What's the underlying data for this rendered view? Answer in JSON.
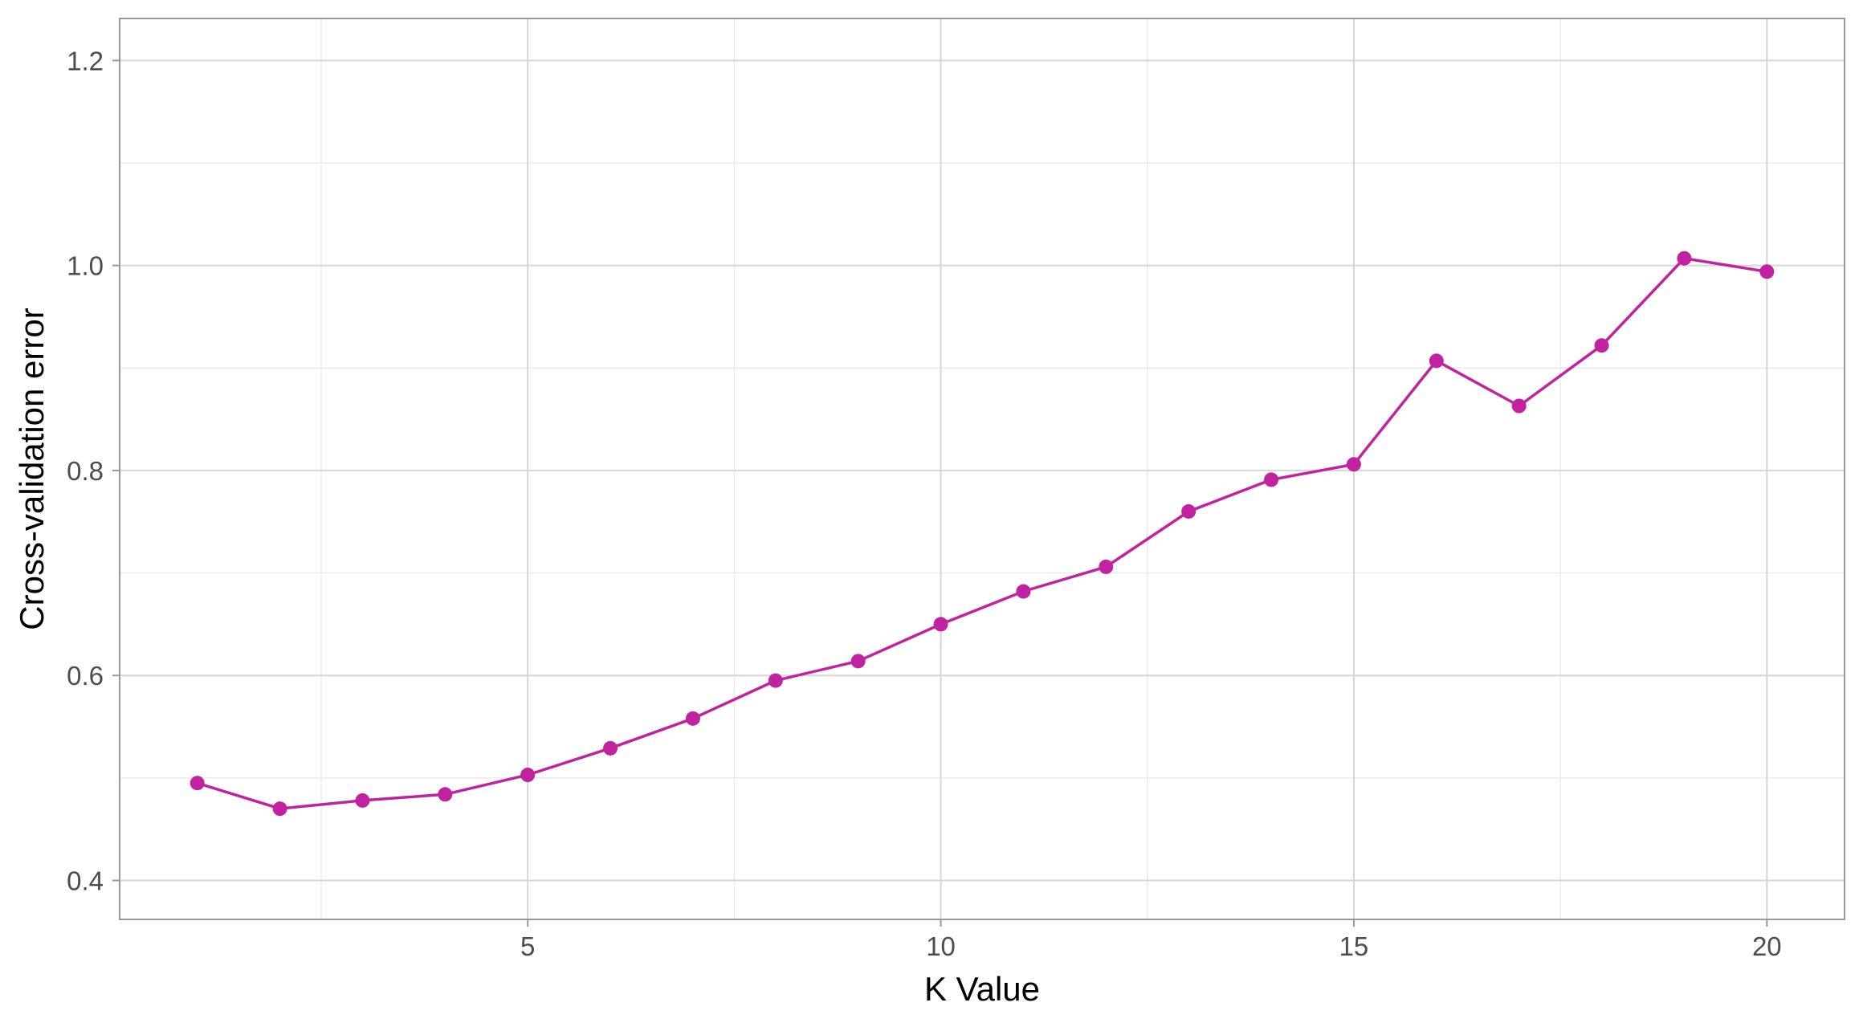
{
  "chart_data": {
    "type": "line",
    "title": "",
    "xlabel": "K Value",
    "ylabel": "Cross-validation error",
    "x": [
      1,
      2,
      3,
      4,
      5,
      6,
      7,
      8,
      9,
      10,
      11,
      12,
      13,
      14,
      15,
      16,
      17,
      18,
      19,
      20
    ],
    "series": [
      {
        "values": [
          0.495,
          0.47,
          0.478,
          0.484,
          0.503,
          0.529,
          0.558,
          0.595,
          0.614,
          0.65,
          0.682,
          0.706,
          0.76,
          0.791,
          0.806,
          0.907,
          0.863,
          0.922,
          1.007,
          0.994
        ],
        "color": "#c1229f"
      }
    ],
    "xlim": [
      0.06,
      20.94
    ],
    "ylim": [
      0.362,
      1.241
    ],
    "xticks": [
      5,
      10,
      15,
      20
    ],
    "xtick_labels": [
      "5",
      "10",
      "15",
      "20"
    ],
    "yticks": [
      0.4,
      0.6,
      0.8,
      1.0,
      1.2
    ],
    "ytick_labels": [
      "0.4",
      "0.6",
      "0.8",
      "1.0",
      "1.2"
    ],
    "x_minor_ticks": [
      2.5,
      7.5,
      12.5,
      17.5
    ],
    "y_minor_ticks": [
      0.5,
      0.7,
      0.9,
      1.1
    ],
    "grid": true,
    "legend": "none",
    "colors": {
      "panel_border": "#999999",
      "major_grid": "#d6d6d6",
      "minor_grid": "#ebebeb"
    }
  }
}
